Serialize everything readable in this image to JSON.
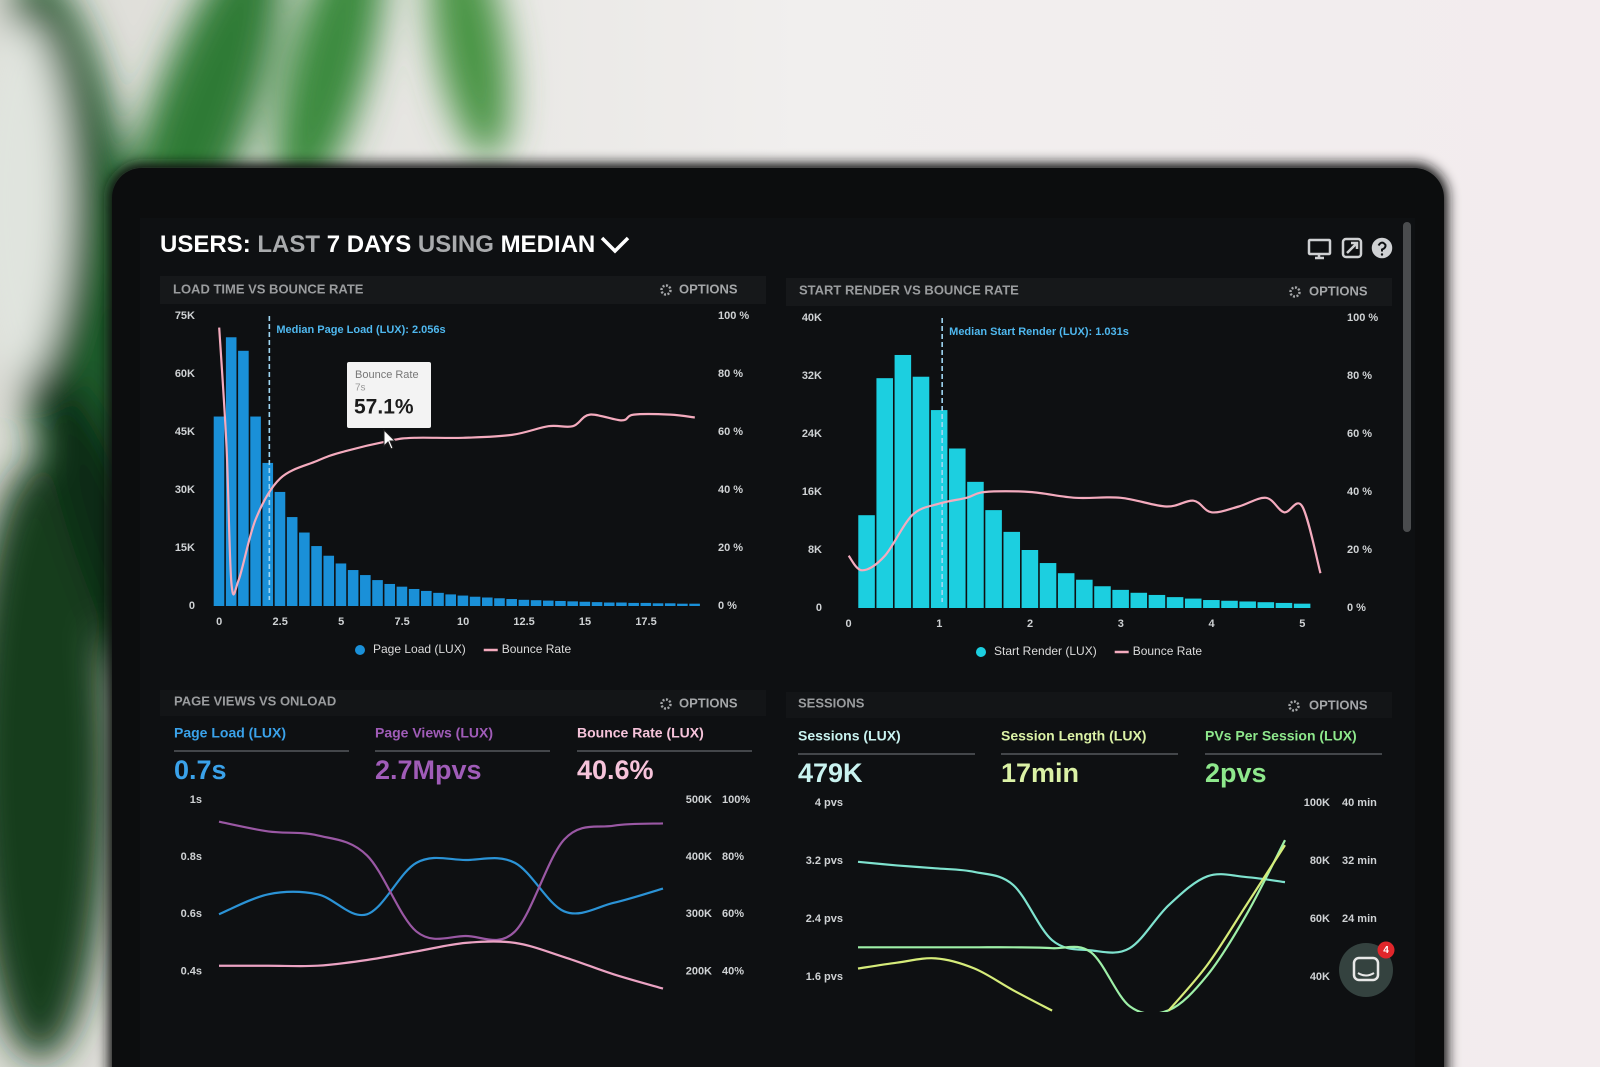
{
  "header": {
    "title_parts": [
      "USERS:",
      "LAST",
      "7 DAYS",
      "USING",
      "MEDIAN"
    ]
  },
  "panels": [
    {
      "title": "LOAD TIME VS BOUNCE RATE",
      "options": "OPTIONS"
    },
    {
      "title": "START RENDER VS BOUNCE RATE",
      "options": "OPTIONS"
    },
    {
      "title": "PAGE VIEWS VS ONLOAD",
      "options": "OPTIONS",
      "kpis": [
        {
          "label": "Page Load (LUX)",
          "value": "0.7s",
          "color": "#3aa2ea"
        },
        {
          "label": "Page Views (LUX)",
          "value": "2.7Mpvs",
          "color": "#a05cb8"
        },
        {
          "label": "Bounce Rate (LUX)",
          "value": "40.6%",
          "color": "#f6c3da"
        }
      ]
    },
    {
      "title": "SESSIONS",
      "options": "OPTIONS",
      "kpis": [
        {
          "label": "Sessions (LUX)",
          "value": "479K",
          "color": "#c9f3f0"
        },
        {
          "label": "Session Length (LUX)",
          "value": "17min",
          "color": "#dbf2a6"
        },
        {
          "label": "PVs Per Session (LUX)",
          "value": "2pvs",
          "color": "#8ee88c"
        }
      ]
    }
  ],
  "chart_data": [
    {
      "type": "histogram",
      "annotation": "Median Page Load (LUX): 2.056s",
      "median": 2.056,
      "legend": "bottom",
      "bins": [
        -0.25,
        0.25,
        0.75,
        1.25,
        1.75,
        2.25,
        2.75,
        3.25,
        3.75,
        4.25,
        4.75,
        5.25,
        5.75,
        6.25,
        6.75,
        7.25,
        7.75,
        8.25,
        8.75,
        9.25,
        9.75,
        10.25,
        10.75,
        11.25,
        11.75,
        12.25,
        12.75,
        13.25,
        13.75,
        14.25,
        14.75,
        15.25,
        15.75,
        16.25,
        16.75,
        17.25,
        17.75,
        18.25,
        18.75,
        19.25,
        19.75
      ],
      "xlim": [
        -0.5,
        20
      ],
      "xticks": [
        0,
        2.5,
        5,
        7.5,
        10,
        12.5,
        15,
        17.5
      ],
      "ylim": [
        0,
        75000
      ],
      "yticks": [
        {
          "value": 0,
          "label": "0"
        },
        {
          "value": 15000,
          "label": "15K"
        },
        {
          "value": 30000,
          "label": "30K"
        },
        {
          "value": 45000,
          "label": "45K"
        },
        {
          "value": 60000,
          "label": "60K"
        },
        {
          "value": 75000,
          "label": "75K"
        }
      ],
      "y2lim": [
        0,
        100
      ],
      "y2ticks": [
        {
          "value": 0,
          "label": "0 %"
        },
        {
          "value": 20,
          "label": "20 %"
        },
        {
          "value": 40,
          "label": "40 %"
        },
        {
          "value": 60,
          "label": "60 %"
        },
        {
          "value": 80,
          "label": "80 %"
        },
        {
          "value": 100,
          "label": "100 %"
        }
      ],
      "series": [
        {
          "name": "Page Load (LUX)",
          "color": "#1a90d8",
          "values": [
            49000,
            69500,
            66000,
            49000,
            37000,
            29500,
            23000,
            19000,
            15500,
            13000,
            11000,
            9300,
            8000,
            6700,
            5700,
            5000,
            4400,
            3900,
            3400,
            3000,
            2700,
            2400,
            2200,
            2000,
            1800,
            1600,
            1500,
            1400,
            1300,
            1200,
            1100,
            1000,
            900,
            900,
            800,
            800,
            700,
            700,
            600,
            600
          ]
        },
        {
          "name": "Bounce Rate",
          "color": "#f4abbe",
          "axis": "y2",
          "x": [
            0,
            0.3,
            0.5,
            0.8,
            1.5,
            2.5,
            4,
            5,
            7,
            8,
            10,
            12,
            13.5,
            14.5,
            15.2,
            16.5,
            17,
            18.5,
            19.5
          ],
          "values": [
            96,
            55,
            8,
            9,
            30,
            44,
            50,
            53,
            57,
            58,
            58,
            59,
            62,
            62,
            66,
            64,
            66,
            66,
            65
          ]
        }
      ]
    },
    {
      "type": "histogram",
      "annotation": "Median Start Render (LUX): 1.031s",
      "median": 1.031,
      "legend": "bottom",
      "bins": [
        0.1,
        0.3,
        0.5,
        0.7,
        0.9,
        1.1,
        1.3,
        1.5,
        1.7,
        1.9,
        2.1,
        2.3,
        2.5,
        2.7,
        2.9,
        3.1,
        3.3,
        3.5,
        3.7,
        3.9,
        4.1,
        4.3,
        4.5,
        4.7,
        4.9,
        5.1
      ],
      "xlim": [
        -0.15,
        5.25
      ],
      "xticks": [
        0,
        1,
        2,
        3,
        4,
        5
      ],
      "ylim": [
        0,
        40000
      ],
      "yticks": [
        {
          "value": 0,
          "label": "0"
        },
        {
          "value": 8000,
          "label": "8K"
        },
        {
          "value": 16000,
          "label": "16K"
        },
        {
          "value": 24000,
          "label": "24K"
        },
        {
          "value": 32000,
          "label": "32K"
        },
        {
          "value": 40000,
          "label": "40K"
        }
      ],
      "y2lim": [
        0,
        100
      ],
      "y2ticks": [
        {
          "value": 0,
          "label": "0 %"
        },
        {
          "value": 20,
          "label": "20 %"
        },
        {
          "value": 40,
          "label": "40 %"
        },
        {
          "value": 60,
          "label": "60 %"
        },
        {
          "value": 80,
          "label": "80 %"
        },
        {
          "value": 100,
          "label": "100 %"
        }
      ],
      "series": [
        {
          "name": "Start Render (LUX)",
          "color": "#1ccfe0",
          "values": [
            12800,
            31700,
            34900,
            31900,
            27300,
            22000,
            17400,
            13500,
            10500,
            8000,
            6200,
            4800,
            3900,
            3000,
            2500,
            2100,
            1800,
            1500,
            1300,
            1100,
            1000,
            900,
            800,
            700,
            600
          ]
        },
        {
          "name": "Bounce Rate",
          "color": "#f4abbe",
          "axis": "y2",
          "x": [
            0,
            0.15,
            0.4,
            0.7,
            1,
            1.3,
            1.5,
            2,
            2.5,
            3,
            3.5,
            3.8,
            4,
            4.3,
            4.6,
            4.8,
            5,
            5.2
          ],
          "values": [
            18,
            13,
            18,
            32,
            36,
            38,
            40,
            40,
            38,
            38,
            35,
            37,
            33,
            35,
            38,
            33,
            35,
            12
          ]
        }
      ]
    },
    {
      "type": "line",
      "ylim": [
        0.3,
        1
      ],
      "yticks": [
        {
          "value": 1,
          "label": "1s"
        },
        {
          "value": 0.8,
          "label": "0.8s"
        },
        {
          "value": 0.6,
          "label": "0.6s"
        },
        {
          "value": 0.4,
          "label": "0.4s"
        }
      ],
      "y2lim": [
        150000,
        500000
      ],
      "y2ticks": [
        {
          "value": 500000,
          "label": "500K"
        },
        {
          "value": 400000,
          "label": "400K"
        },
        {
          "value": 300000,
          "label": "300K"
        },
        {
          "value": 200000,
          "label": "200K"
        }
      ],
      "y3lim": [
        30,
        100
      ],
      "y3ticks": [
        {
          "value": 100,
          "label": "100%"
        },
        {
          "value": 80,
          "label": "80%"
        },
        {
          "value": 60,
          "label": "60%"
        },
        {
          "value": 40,
          "label": "40%"
        }
      ],
      "series": [
        {
          "color": "#2b93d6",
          "values": [
            0.6,
            0.67,
            0.67,
            0.6,
            0.78,
            0.79,
            0.78,
            0.61,
            0.64,
            0.69
          ]
        },
        {
          "color": "#9a58a4",
          "axis": "y2",
          "values": [
            462000,
            445000,
            438000,
            403000,
            270000,
            262000,
            270000,
            431000,
            455000,
            459000
          ]
        },
        {
          "color": "#eba3c3",
          "axis": "y3",
          "values": [
            42,
            42,
            42,
            44,
            47,
            50,
            50,
            45,
            39,
            34
          ]
        }
      ]
    },
    {
      "type": "line",
      "ylim": [
        1.3,
        4
      ],
      "yticks": [
        {
          "value": 4,
          "label": "4 pvs"
        },
        {
          "value": 3.2,
          "label": "3.2 pvs"
        },
        {
          "value": 2.4,
          "label": "2.4 pvs"
        },
        {
          "value": 1.6,
          "label": "1.6 pvs"
        }
      ],
      "y2lim": [
        32500,
        100000
      ],
      "y2ticks": [
        {
          "value": 100000,
          "label": "100K"
        },
        {
          "value": 80000,
          "label": "80K"
        },
        {
          "value": 60000,
          "label": "60K"
        },
        {
          "value": 40000,
          "label": "40K"
        }
      ],
      "y3lim": [
        13,
        40
      ],
      "y3ticks": [
        {
          "value": 40,
          "label": "40 min"
        },
        {
          "value": 32,
          "label": "32 min"
        },
        {
          "value": 24,
          "label": "24 min"
        }
      ],
      "series": [
        {
          "color": "#7fe3cf",
          "values": [
            3.19,
            3.14,
            3.1,
            3.05,
            2.87,
            2.11,
            1.97,
            2.0,
            2.59,
            2.99,
            2.98,
            2.91
          ]
        },
        {
          "color": "#9ef0a8",
          "axis": "y2",
          "values": [
            50300,
            50300,
            50300,
            50300,
            50300,
            50000,
            48600,
            30000,
            28600,
            40700,
            61400,
            87200
          ]
        },
        {
          "color": "#d6ec7a",
          "axis": "y3",
          "values": [
            17.2,
            18,
            18.6,
            17.2,
            14.2,
            11.4,
            null,
            null,
            11.4,
            17.7,
            25.9,
            34.2
          ]
        }
      ]
    }
  ],
  "tooltip": {
    "title": "Bounce Rate",
    "subtitle": "7s",
    "value": "57.1%"
  },
  "notification_count": 4
}
